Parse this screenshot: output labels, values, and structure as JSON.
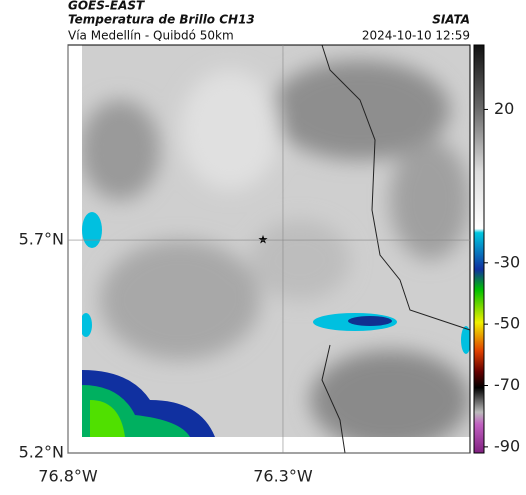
{
  "header": {
    "satellite": "GOES-EAST",
    "product": "Temperatura de Brillo CH13",
    "region": "Vía Medellín - Quibdó 50km",
    "source": "SIATA",
    "timestamp": "2024-10-10 12:59"
  },
  "map": {
    "xlim": [
      -76.8,
      -75.865
    ],
    "ylim": [
      5.2,
      6.158
    ],
    "xticks": [
      {
        "value": -76.8,
        "label": "76.8°W"
      },
      {
        "value": -76.3,
        "label": "76.3°W"
      }
    ],
    "yticks": [
      {
        "value": 5.7,
        "label": "5.7°N"
      },
      {
        "value": 5.2,
        "label": "5.2°N"
      }
    ],
    "colorbar": {
      "lim": [
        -92,
        41
      ],
      "ticks": [
        20,
        -30,
        -50,
        -70,
        -90
      ]
    }
  }
}
